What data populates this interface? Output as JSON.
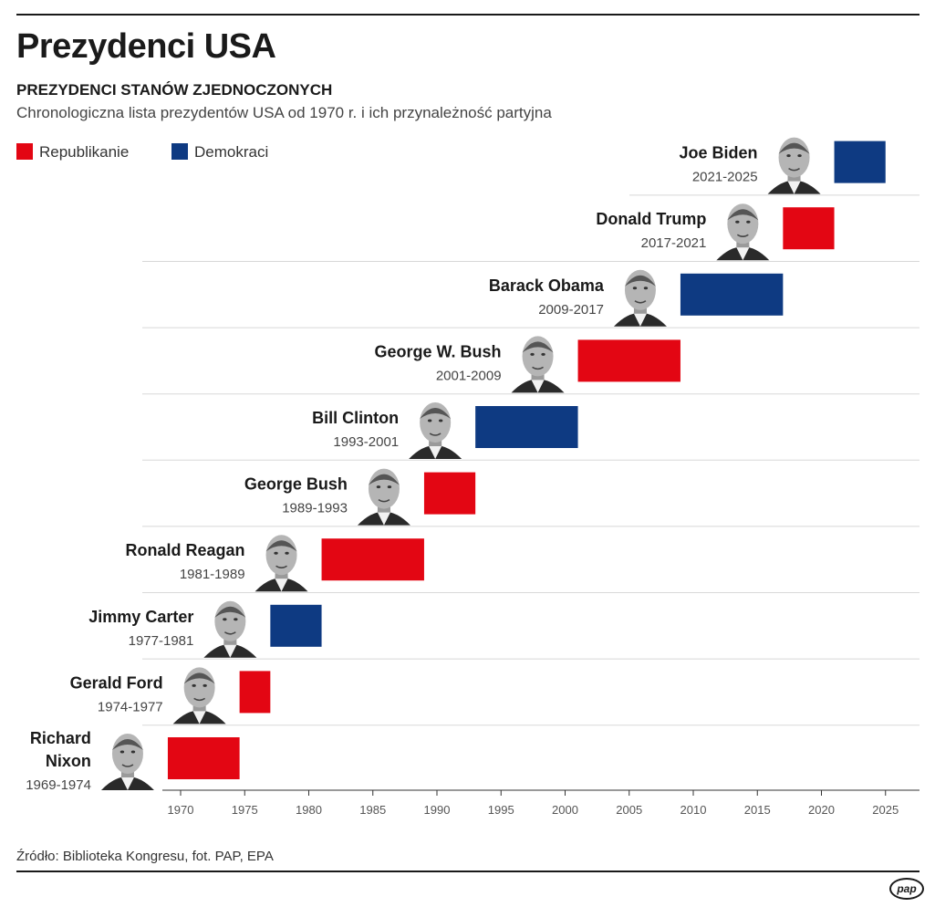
{
  "header": {
    "title": "Prezydenci USA",
    "subtitle": "PREZYDENCI STANÓW ZJEDNOCZONYCH",
    "description": "Chronologiczna lista prezydentów USA od 1970 r. i ich przynależność partyjna"
  },
  "legend": {
    "republicans": "Republikanie",
    "democrats": "Demokraci"
  },
  "colors": {
    "republican": "#e30613",
    "democrat": "#0e3a82",
    "grid": "#d8d8d8",
    "axis": "#333333"
  },
  "footer": {
    "source": "Źródło: Biblioteka Kongresu, fot. PAP, EPA",
    "logo": "pap"
  },
  "chart_data": {
    "type": "bar",
    "subtype": "timeline-gantt",
    "title": "Prezydenci USA",
    "xlabel": "",
    "ylabel": "",
    "xlim": [
      1968,
      2028
    ],
    "x_ticks": [
      1970,
      1975,
      1980,
      1985,
      1990,
      1995,
      2000,
      2005,
      2010,
      2015,
      2020,
      2025
    ],
    "grid": true,
    "legend_position": "top-left",
    "presidents": [
      {
        "name": "Richard Nixon",
        "name_lines": [
          "Richard",
          "Nixon"
        ],
        "years": "1969-1974",
        "start": 1969,
        "end": 1974.6,
        "party": "R"
      },
      {
        "name": "Gerald Ford",
        "name_lines": [
          "Gerald Ford"
        ],
        "years": "1974-1977",
        "start": 1974.6,
        "end": 1977,
        "party": "R"
      },
      {
        "name": "Jimmy Carter",
        "name_lines": [
          "Jimmy Carter"
        ],
        "years": "1977-1981",
        "start": 1977,
        "end": 1981,
        "party": "D"
      },
      {
        "name": "Ronald Reagan",
        "name_lines": [
          "Ronald Reagan"
        ],
        "years": "1981-1989",
        "start": 1981,
        "end": 1989,
        "party": "R"
      },
      {
        "name": "George Bush",
        "name_lines": [
          "George Bush"
        ],
        "years": "1989-1993",
        "start": 1989,
        "end": 1993,
        "party": "R"
      },
      {
        "name": "Bill Clinton",
        "name_lines": [
          "Bill Clinton"
        ],
        "years": "1993-2001",
        "start": 1993,
        "end": 2001,
        "party": "D"
      },
      {
        "name": "George W. Bush",
        "name_lines": [
          "George W. Bush"
        ],
        "years": "2001-2009",
        "start": 2001,
        "end": 2009,
        "party": "R"
      },
      {
        "name": "Barack Obama",
        "name_lines": [
          "Barack Obama"
        ],
        "years": "2009-2017",
        "start": 2009,
        "end": 2017,
        "party": "D"
      },
      {
        "name": "Donald Trump",
        "name_lines": [
          "Donald Trump"
        ],
        "years": "2017-2021",
        "start": 2017,
        "end": 2021,
        "party": "R"
      },
      {
        "name": "Joe Biden",
        "name_lines": [
          "Joe Biden"
        ],
        "years": "2021-2025",
        "start": 2021,
        "end": 2025,
        "party": "D"
      }
    ]
  }
}
